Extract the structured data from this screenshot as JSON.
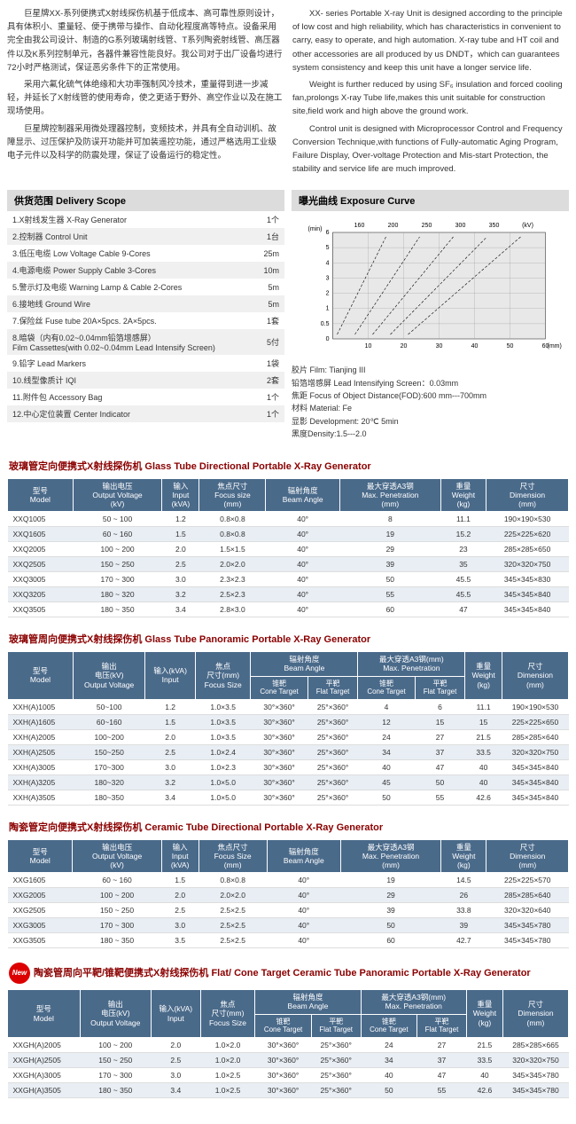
{
  "intro_cn": [
    "巨星牌XX-系列便携式X射线探伤机基于低成本、高可靠性原则设计，具有体积小、重量轻、便于携带与操作、自动化程度高等特点。设备采用完全由我公司设计、制造的G系列玻璃射线管、T系列陶瓷射线管、高压器件以及K系列控制单元，各器件兼容性能良好。我公司对于出厂设备均进行72小时严格测试，保证恶劣条件下的正常使用。",
    "采用六氟化硫气体绝缘和大功率强制风冷技术，重量得到进一步减轻，并延长了X射线管的使用寿命，使之更适于野外、高空作业以及在施工现场使用。",
    "巨星牌控制器采用微处理器控制，变频技术，并具有全自动训机、故障显示、过压保护及防误开功能并可加装遥控功能，通过严格选用工业级电子元件以及科学的防震处理，保证了设备运行的稳定性。"
  ],
  "intro_en": [
    "XX- series Portable X-ray Unit is designed according to the principle of low cost and high reliability, which has characteristics in convenient to carry, easy to operate, and high automation. X-ray tube and HT coil and other accessories are all produced by us DNDT，which can guarantees system consistency and keep this unit have a longer service life.",
    "Weight is further reduced by using SF₆ insulation and forced cooling fan,prolongs X-ray Tube life,makes this unit suitable for construction site,field work and high above the ground work.",
    "Control unit is designed with Microprocessor Control and Frequency Conversion Technique,with functions of Fully-automatic Aging Program, Failure Display, Over-voltage Protection and Mis-start Protection, the stability and service life are much improved."
  ],
  "delivery_title": "供货范围 Delivery Scope",
  "delivery": [
    [
      "1.X射线发生器 X-Ray Generator",
      "1个"
    ],
    [
      "2.控制器 Control Unit",
      "1台"
    ],
    [
      "3.低压电缆 Low Voltage Cable 9-Cores",
      "25m"
    ],
    [
      "4.电源电缆 Power Supply Cable 3-Cores",
      "10m"
    ],
    [
      "5.警示灯及电缆 Warning Lamp & Cable 2-Cores",
      "5m"
    ],
    [
      "6.接地线 Ground Wire",
      "5m"
    ],
    [
      "7.保险丝 Fuse tube  20A×5pcs.  2A×5pcs.",
      "1套"
    ],
    [
      "8.暗袋（内有0.02~0.04mm铅箔增感屏）\nFilm Cassettes(with 0.02~0.04mm Lead Intensify Screen)",
      "5付"
    ],
    [
      "9.铅字 Lead Markers",
      "1袋"
    ],
    [
      "10.线型像质计 IQI",
      "2套"
    ],
    [
      "11.附件包 Accessory Bag",
      "1个"
    ],
    [
      "12.中心定位装置 Center Indicator",
      "1个"
    ]
  ],
  "exposure_title": "曝光曲线 Exposure Curve",
  "exposure_chart": {
    "x_ticks": [
      10,
      20,
      30,
      40,
      50,
      60
    ],
    "y_ticks": [
      0,
      0.5,
      1,
      2,
      3,
      4,
      5,
      6
    ],
    "kv_labels": [
      "160",
      "200",
      "250",
      "300",
      "350",
      "(kV)"
    ],
    "x_unit": "(mm)",
    "y_unit": "(min)",
    "grid_color": "#000",
    "bg": "#e8e8e8"
  },
  "exposure_info": [
    "胶片 Film: Tianjing III",
    "铅箔增感屏 Lead Intensifying Screen：0.03mm",
    "焦距 Focus of Object Distance(FOD):600 mm---700mm",
    "材料 Material: Fe",
    "显影 Development: 20℃ 5min",
    "黑度Density:1.5---2.0"
  ],
  "tables": [
    {
      "title": "玻璃管定向便携式X射线探伤机 Glass Tube Directional Portable  X-Ray Generator",
      "head_type": "simple",
      "columns": [
        "型号\nModel",
        "输出电压\nOutput Voltage\n(kV)",
        "输入\nInput\n(kVA)",
        "焦点尺寸\nFocus size\n(mm)",
        "辐射角度\nBeam Angle",
        "最大穿透A3钢\nMax. Penetration\n(mm)",
        "重量\nWeight\n(kg)",
        "尺寸\nDimension\n(mm)"
      ],
      "rows": [
        [
          "XXQ1005",
          "50 ~ 100",
          "1.2",
          "0.8×0.8",
          "40°",
          "8",
          "11.1",
          "190×190×530"
        ],
        [
          "XXQ1605",
          "60 ~ 160",
          "1.5",
          "0.8×0.8",
          "40°",
          "19",
          "15.2",
          "225×225×620"
        ],
        [
          "XXQ2005",
          "100 ~ 200",
          "2.0",
          "1.5×1.5",
          "40°",
          "29",
          "23",
          "285×285×650"
        ],
        [
          "XXQ2505",
          "150 ~ 250",
          "2.5",
          "2.0×2.0",
          "40°",
          "39",
          "35",
          "320×320×750"
        ],
        [
          "XXQ3005",
          "170 ~ 300",
          "3.0",
          "2.3×2.3",
          "40°",
          "50",
          "45.5",
          "345×345×830"
        ],
        [
          "XXQ3205",
          "180 ~ 320",
          "3.2",
          "2.5×2.3",
          "40°",
          "55",
          "45.5",
          "345×345×840"
        ],
        [
          "XXQ3505",
          "180 ~ 350",
          "3.4",
          "2.8×3.0",
          "40°",
          "60",
          "47",
          "345×345×840"
        ]
      ]
    },
    {
      "title": "玻璃管周向便携式X射线探伤机 Glass Tube Panoramic Portable  X-Ray Generator",
      "head_type": "split",
      "columns_top": [
        "型号\nModel",
        "输出\n电压(kV)\nOutput Voltage",
        "输入(kVA)\nInput",
        "焦点\n尺寸(mm)\nFocus Size",
        "辐射角度\nBeam Angle",
        "最大穿透A3钢(mm)\nMax. Penetration",
        "重量\nWeight\n(kg)",
        "尺寸\nDimension\n(mm)"
      ],
      "sub": [
        "锥靶\nCone Target",
        "平靶\nFlat Target",
        "锥靶\nCone Target",
        "平靶\nFlat Target"
      ],
      "rows": [
        [
          "XXH(A)1005",
          "50~100",
          "1.2",
          "1.0×3.5",
          "30°×360°",
          "25°×360°",
          "4",
          "6",
          "11.1",
          "190×190×530"
        ],
        [
          "XXH(A)1605",
          "60~160",
          "1.5",
          "1.0×3.5",
          "30°×360°",
          "25°×360°",
          "12",
          "15",
          "15",
          "225×225×650"
        ],
        [
          "XXH(A)2005",
          "100~200",
          "2.0",
          "1.0×3.5",
          "30°×360°",
          "25°×360°",
          "24",
          "27",
          "21.5",
          "285×285×640"
        ],
        [
          "XXH(A)2505",
          "150~250",
          "2.5",
          "1.0×2.4",
          "30°×360°",
          "25°×360°",
          "34",
          "37",
          "33.5",
          "320×320×750"
        ],
        [
          "XXH(A)3005",
          "170~300",
          "3.0",
          "1.0×2.3",
          "30°×360°",
          "25°×360°",
          "40",
          "47",
          "40",
          "345×345×840"
        ],
        [
          "XXH(A)3205",
          "180~320",
          "3.2",
          "1.0×5.0",
          "30°×360°",
          "25°×360°",
          "45",
          "50",
          "40",
          "345×345×840"
        ],
        [
          "XXH(A)3505",
          "180~350",
          "3.4",
          "1.0×5.0",
          "30°×360°",
          "25°×360°",
          "50",
          "55",
          "42.6",
          "345×345×840"
        ]
      ]
    },
    {
      "title": "陶瓷管定向便携式X射线探伤机 Ceramic Tube Directional Portable X-Ray Generator",
      "head_type": "simple",
      "columns": [
        "型号\nModel",
        "输出电压\nOutput Voltage\n(kV)",
        "输入\nInput\n(kVA)",
        "焦点尺寸\nFocus Size\n(mm)",
        "辐射角度\nBeam Angle",
        "最大穿透A3钢\nMax. Penetration\n(mm)",
        "重量\nWeight\n(kg)",
        "尺寸\nDimension\n(mm)"
      ],
      "rows": [
        [
          "XXG1605",
          "60 ~ 160",
          "1.5",
          "0.8×0.8",
          "40°",
          "19",
          "14.5",
          "225×225×570"
        ],
        [
          "XXG2005",
          "100 ~ 200",
          "2.0",
          "2.0×2.0",
          "40°",
          "29",
          "26",
          "285×285×640"
        ],
        [
          "XXG2505",
          "150 ~ 250",
          "2.5",
          "2.5×2.5",
          "40°",
          "39",
          "33.8",
          "320×320×640"
        ],
        [
          "XXG3005",
          "170 ~ 300",
          "3.0",
          "2.5×2.5",
          "40°",
          "50",
          "39",
          "345×345×780"
        ],
        [
          "XXG3505",
          "180 ~ 350",
          "3.5",
          "2.5×2.5",
          "40°",
          "60",
          "42.7",
          "345×345×780"
        ]
      ]
    },
    {
      "title": "陶瓷管周向平靶/锥靶便携式X射线探伤机 Flat/ Cone Target  Ceramic Tube Panoramic Portable  X-Ray Generator",
      "new": true,
      "head_type": "split",
      "columns_top": [
        "型号\nModel",
        "输出\n电压(kV)\nOutput Voltage",
        "输入(kVA)\nInput",
        "焦点\n尺寸(mm)\nFocus Size",
        "辐射角度\nBeam Angle",
        "最大穿透A3钢(mm)\nMax. Penetration",
        "重量\nWeight\n(kg)",
        "尺寸\nDimension\n(mm)"
      ],
      "sub": [
        "锥靶\nCone Target",
        "平靶\nFlat Target",
        "锥靶\nCone Target",
        "平靶\nFlat Target"
      ],
      "rows": [
        [
          "XXGH(A)2005",
          "100 ~ 200",
          "2.0",
          "1.0×2.0",
          "30°×360°",
          "25°×360°",
          "24",
          "27",
          "21.5",
          "285×285×665"
        ],
        [
          "XXGH(A)2505",
          "150 ~ 250",
          "2.5",
          "1.0×2.0",
          "30°×360°",
          "25°×360°",
          "34",
          "37",
          "33.5",
          "320×320×750"
        ],
        [
          "XXGH(A)3005",
          "170 ~ 300",
          "3.0",
          "1.0×2.5",
          "30°×360°",
          "25°×360°",
          "40",
          "47",
          "40",
          "345×345×780"
        ],
        [
          "XXGH(A)3505",
          "180 ~ 350",
          "3.4",
          "1.0×2.5",
          "30°×360°",
          "25°×360°",
          "50",
          "55",
          "42.6",
          "345×345×780"
        ]
      ]
    }
  ]
}
